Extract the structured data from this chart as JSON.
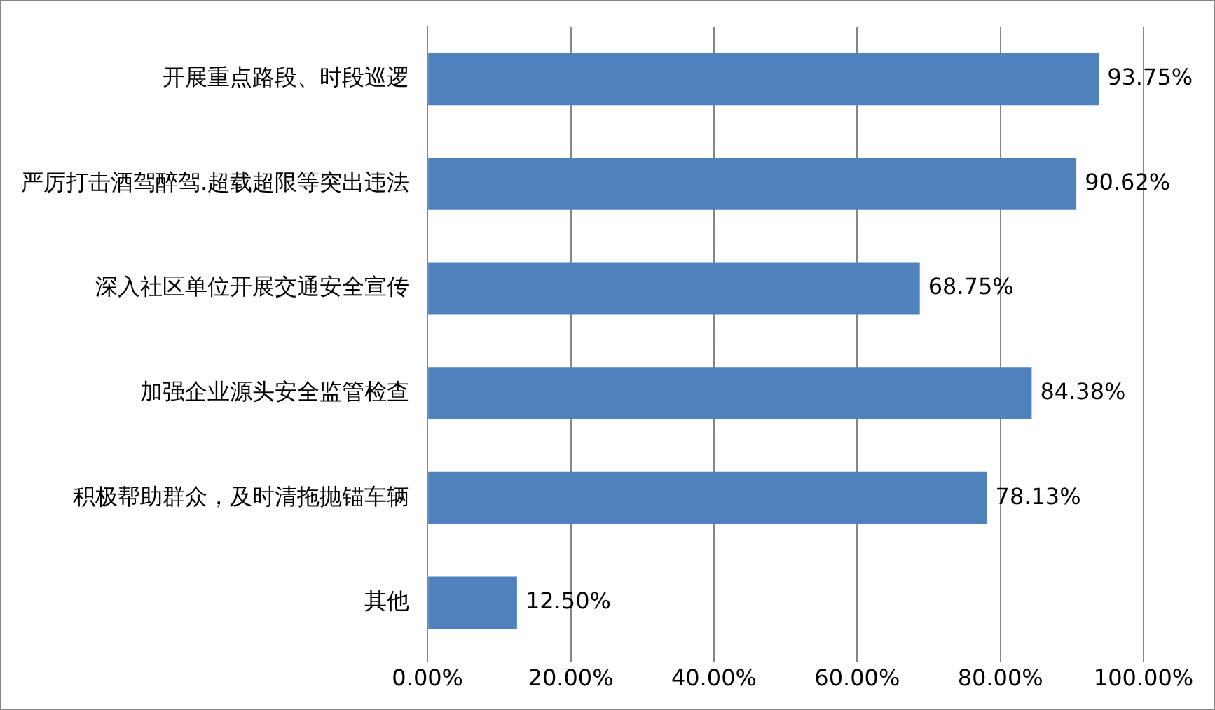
{
  "chart_data": {
    "type": "bar",
    "orientation": "horizontal",
    "categories": [
      "开展重点路段、时段巡逻",
      "严厉打击酒驾醉驾.超载超限等突出违法",
      "深入社区单位开展交通安全宣传",
      "加强企业源头安全监管检查",
      "积极帮助群众，及时清拖抛锚车辆",
      "其他"
    ],
    "values": [
      93.75,
      90.62,
      68.75,
      84.38,
      78.13,
      12.5
    ],
    "value_labels": [
      "93.75%",
      "90.62%",
      "68.75%",
      "84.38%",
      "78.13%",
      "12.50%"
    ],
    "color": "#4f81bd",
    "xlim": [
      0,
      100
    ],
    "xticks": [
      {
        "value": 0,
        "label": "0.00%"
      },
      {
        "value": 20,
        "label": "20.00%"
      },
      {
        "value": 40,
        "label": "40.00%"
      },
      {
        "value": 60,
        "label": "60.00%"
      },
      {
        "value": 80,
        "label": "80.00%"
      },
      {
        "value": 100,
        "label": "100.00%"
      }
    ],
    "grid": "x"
  }
}
